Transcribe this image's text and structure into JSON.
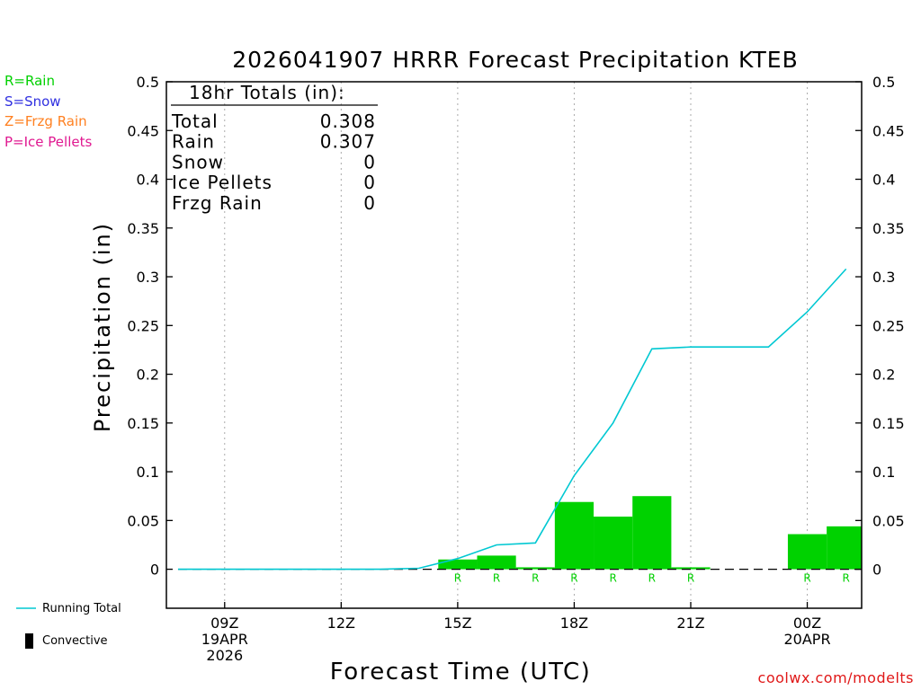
{
  "title": "2026041907 HRRR Forecast Precipitation KTEB",
  "ptype_legend": [
    {
      "label": "R=Rain",
      "color": "#00d000"
    },
    {
      "label": "S=Snow",
      "color": "#3030e0"
    },
    {
      "label": "Z=Frzg Rain",
      "color": "#ff8020"
    },
    {
      "label": "P=Ice Pellets",
      "color": "#e01890"
    }
  ],
  "series_legend": {
    "running_total": "Running Total",
    "convective": "Convective"
  },
  "totals_box": {
    "heading": "18hr Totals (in):",
    "rows": [
      {
        "label": "Total",
        "value": "0.308"
      },
      {
        "label": "Rain",
        "value": "0.307"
      },
      {
        "label": "Snow",
        "value": "0"
      },
      {
        "label": "Ice Pellets",
        "value": "0"
      },
      {
        "label": "Frzg Rain",
        "value": "0"
      }
    ]
  },
  "credit": "coolwx.com/modelts",
  "colors": {
    "bar": "#00d200",
    "running_total": "#00c8d2",
    "rain_marker": "#00d000"
  },
  "chart_data": {
    "type": "bar",
    "xlabel": "Forecast Time (UTC)",
    "ylabel": "Precipitation (in)",
    "ylim": [
      -0.04,
      0.5
    ],
    "yticks": [
      0,
      0.05,
      0.1,
      0.15,
      0.2,
      0.25,
      0.3,
      0.35,
      0.4,
      0.45,
      0.5
    ],
    "ytick_labels": [
      "0",
      "0.05",
      "0.1",
      "0.15",
      "0.2",
      "0.25",
      "0.3",
      "0.35",
      "0.4",
      "0.45",
      "0.5"
    ],
    "xlim": [
      7.5,
      25.4
    ],
    "xticks": [
      {
        "hour": 9,
        "lines": [
          "09Z",
          "19APR",
          "2026"
        ]
      },
      {
        "hour": 12,
        "lines": [
          "12Z"
        ]
      },
      {
        "hour": 15,
        "lines": [
          "15Z"
        ]
      },
      {
        "hour": 18,
        "lines": [
          "18Z"
        ]
      },
      {
        "hour": 21,
        "lines": [
          "21Z"
        ]
      },
      {
        "hour": 24,
        "lines": [
          "00Z",
          "20APR"
        ]
      }
    ],
    "grid": "vertical dotted at x ticks",
    "hourly_precip": [
      {
        "hour": 8,
        "value": 0.0
      },
      {
        "hour": 9,
        "value": 0.0
      },
      {
        "hour": 10,
        "value": 0.0
      },
      {
        "hour": 11,
        "value": 0.0
      },
      {
        "hour": 12,
        "value": 0.0
      },
      {
        "hour": 13,
        "value": 0.0
      },
      {
        "hour": 14,
        "value": 0.0
      },
      {
        "hour": 15,
        "value": 0.01,
        "ptype": "R"
      },
      {
        "hour": 16,
        "value": 0.014,
        "ptype": "R"
      },
      {
        "hour": 17,
        "value": 0.002,
        "ptype": "R"
      },
      {
        "hour": 18,
        "value": 0.069,
        "ptype": "R"
      },
      {
        "hour": 19,
        "value": 0.054,
        "ptype": "R"
      },
      {
        "hour": 20,
        "value": 0.075,
        "ptype": "R"
      },
      {
        "hour": 21,
        "value": 0.002,
        "ptype": "R"
      },
      {
        "hour": 22,
        "value": 0.0
      },
      {
        "hour": 23,
        "value": 0.0
      },
      {
        "hour": 24,
        "value": 0.036,
        "ptype": "R"
      },
      {
        "hour": 25,
        "value": 0.044,
        "ptype": "R"
      }
    ],
    "running_total": {
      "name": "Running Total",
      "points": [
        [
          7.8,
          0.0
        ],
        [
          9,
          0.0
        ],
        [
          10,
          0.0
        ],
        [
          11,
          0.0
        ],
        [
          12,
          0.0
        ],
        [
          13,
          0.0
        ],
        [
          14,
          0.001
        ],
        [
          15,
          0.011
        ],
        [
          16,
          0.025
        ],
        [
          17,
          0.027
        ],
        [
          18,
          0.096
        ],
        [
          19,
          0.15
        ],
        [
          20,
          0.226
        ],
        [
          21,
          0.228
        ],
        [
          22,
          0.228
        ],
        [
          23,
          0.228
        ],
        [
          24,
          0.264
        ],
        [
          25,
          0.308
        ]
      ]
    }
  }
}
